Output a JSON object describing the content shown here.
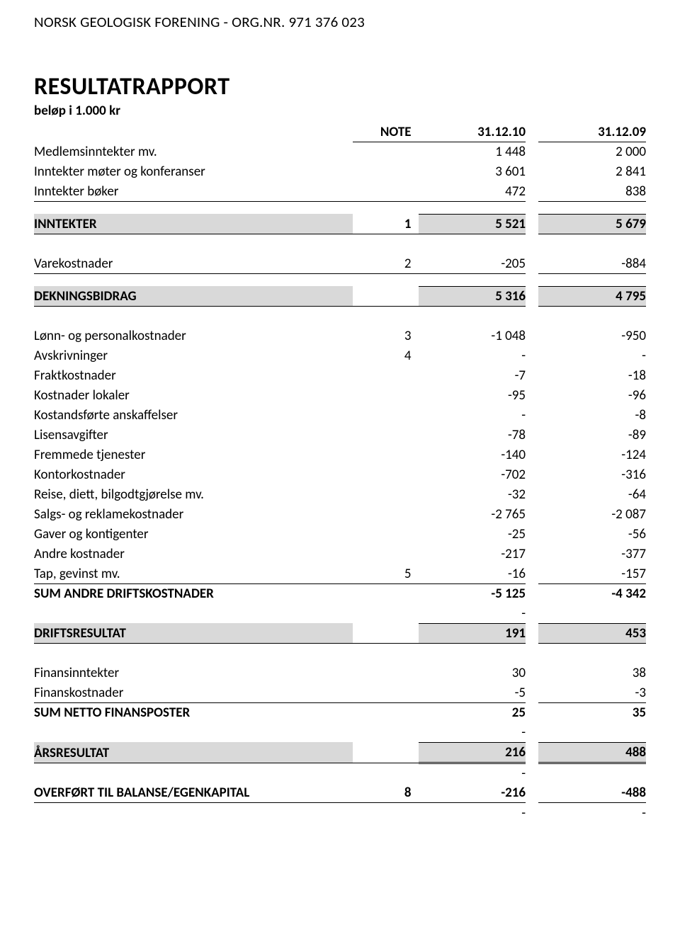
{
  "org_header": "NORSK GEOLOGISK FORENING - ORG.NR. 971 376 023",
  "title": "RESULTATRAPPORT",
  "subtitle": "beløp i 1.000 kr",
  "col_headers": {
    "note": "NOTE",
    "c1": "31.12.10",
    "c2": "31.12.09"
  },
  "rows": {
    "r1": {
      "label": "Medlemsinntekter mv.",
      "note": "",
      "v1": "1 448",
      "v2": "2 000"
    },
    "r2": {
      "label": "Inntekter møter og konferanser",
      "note": "",
      "v1": "3 601",
      "v2": "2 841"
    },
    "r3": {
      "label": "Inntekter bøker",
      "note": "",
      "v1": "472",
      "v2": "838"
    },
    "r4": {
      "label": "INNTEKTER",
      "note": "1",
      "v1": "5 521",
      "v2": "5 679"
    },
    "r5": {
      "label": "Varekostnader",
      "note": "2",
      "v1": "-205",
      "v2": "-884"
    },
    "r6": {
      "label": "DEKNINGSBIDRAG",
      "note": "",
      "v1": "5 316",
      "v2": "4 795"
    },
    "r7": {
      "label": "Lønn- og personalkostnader",
      "note": "3",
      "v1": "-1 048",
      "v2": "-950"
    },
    "r8": {
      "label": "Avskrivninger",
      "note": "4",
      "v1": "-",
      "v2": "-"
    },
    "r9": {
      "label": "Fraktkostnader",
      "note": "",
      "v1": "-7",
      "v2": "-18"
    },
    "r10": {
      "label": "Kostnader lokaler",
      "note": "",
      "v1": "-95",
      "v2": "-96"
    },
    "r11": {
      "label": "Kostandsførte anskaffelser",
      "note": "",
      "v1": "-",
      "v2": "-8"
    },
    "r12": {
      "label": "Lisensavgifter",
      "note": "",
      "v1": "-78",
      "v2": "-89"
    },
    "r13": {
      "label": "Fremmede tjenester",
      "note": "",
      "v1": "-140",
      "v2": "-124"
    },
    "r14": {
      "label": "Kontorkostnader",
      "note": "",
      "v1": "-702",
      "v2": "-316"
    },
    "r15": {
      "label": "Reise, diett, bilgodtgjørelse mv.",
      "note": "",
      "v1": "-32",
      "v2": "-64"
    },
    "r16": {
      "label": "Salgs- og reklamekostnader",
      "note": "",
      "v1": "-2 765",
      "v2": "-2 087"
    },
    "r17": {
      "label": "Gaver og kontigenter",
      "note": "",
      "v1": "-25",
      "v2": "-56"
    },
    "r18": {
      "label": "Andre kostnader",
      "note": "",
      "v1": "-217",
      "v2": "-377"
    },
    "r19": {
      "label": "Tap, gevinst mv.",
      "note": "5",
      "v1": "-16",
      "v2": "-157"
    },
    "r20": {
      "label": "SUM ANDRE DRIFTSKOSTNADER",
      "note": "",
      "v1": "-5 125",
      "v2": "-4 342"
    },
    "dash1": {
      "v": "-"
    },
    "r21": {
      "label": "DRIFTSRESULTAT",
      "note": "",
      "v1": "191",
      "v2": "453"
    },
    "r22": {
      "label": "Finansinntekter",
      "note": "",
      "v1": "30",
      "v2": "38"
    },
    "r23": {
      "label": "Finanskostnader",
      "note": "",
      "v1": "-5",
      "v2": "-3"
    },
    "r24": {
      "label": "SUM NETTO FINANSPOSTER",
      "note": "",
      "v1": "25",
      "v2": "35"
    },
    "dash2": {
      "v": "-"
    },
    "r25": {
      "label": "ÅRSRESULTAT",
      "note": "",
      "v1": "216",
      "v2": "488"
    },
    "dash3": {
      "v": "-"
    },
    "r26": {
      "label": "OVERFØRT TIL BALANSE/EGENKAPITAL",
      "note": "8",
      "v1": "-216",
      "v2": "-488"
    },
    "r27": {
      "v1": "-",
      "v2": "-"
    }
  }
}
